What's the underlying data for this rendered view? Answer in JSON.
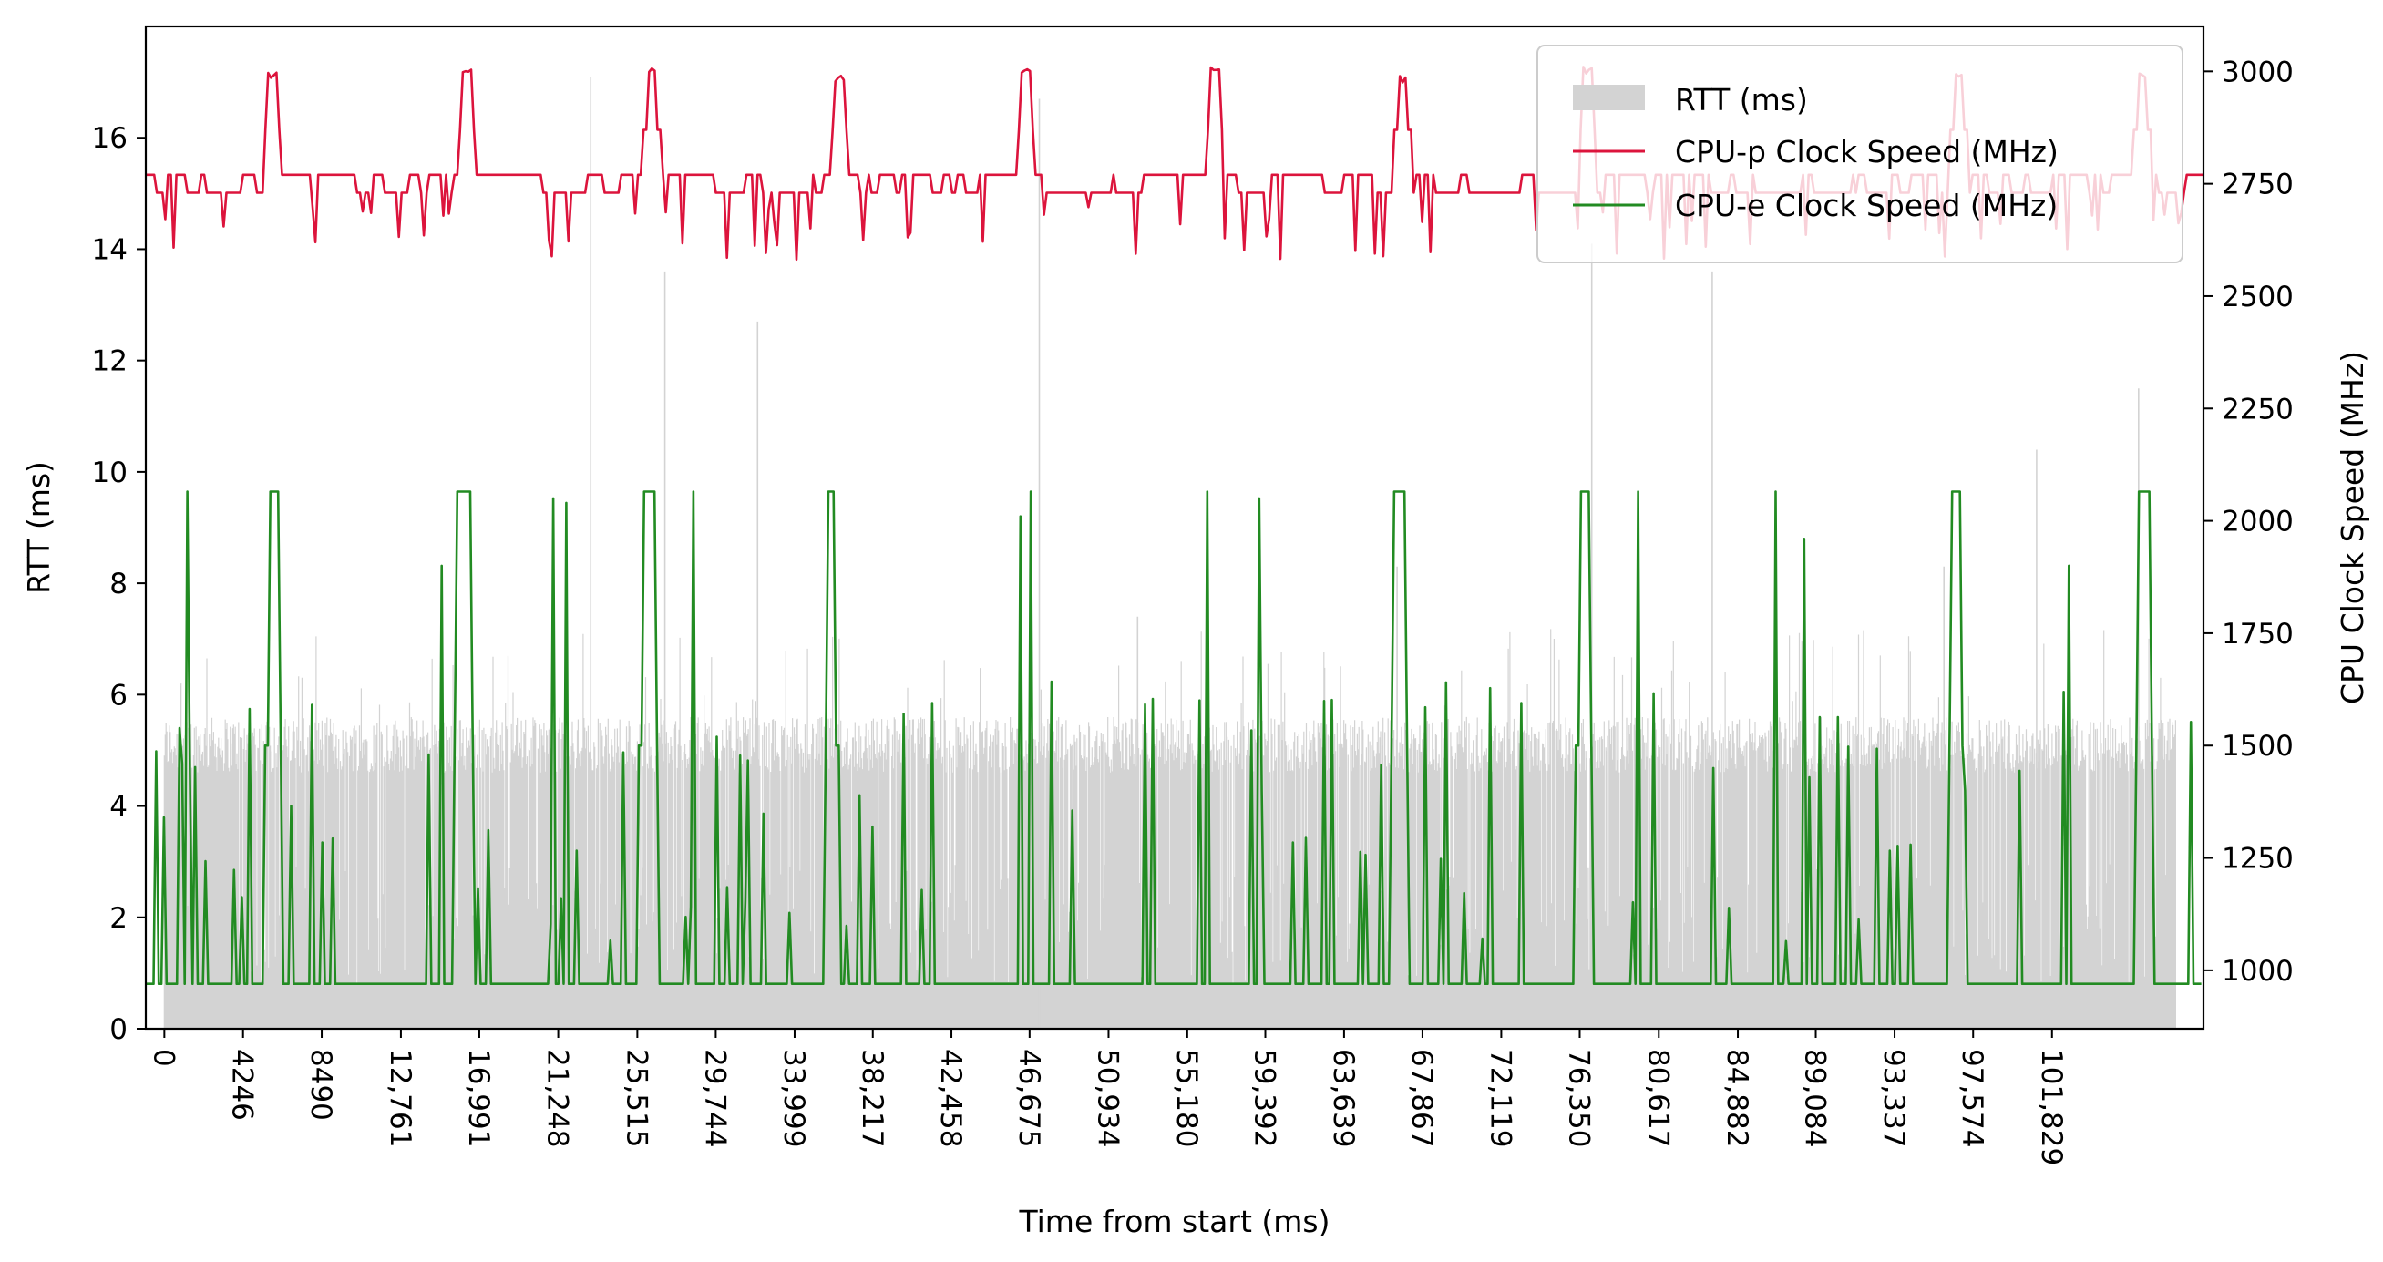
{
  "chart_data": {
    "type": "bar+line",
    "title": "",
    "xlabel": "Time from start (ms)",
    "ylabel_left": "RTT (ms)",
    "ylabel_right": "CPU Clock Speed (MHz)",
    "ylim_left": [
      0,
      18
    ],
    "ylim_right": [
      870,
      3100
    ],
    "xlim": [
      -1000,
      110000
    ],
    "x_ticks": [
      {
        "value": 0,
        "label": "0"
      },
      {
        "value": 4246,
        "label": "4246"
      },
      {
        "value": 8490,
        "label": "8490"
      },
      {
        "value": 12761,
        "label": "12,761"
      },
      {
        "value": 16991,
        "label": "16,991"
      },
      {
        "value": 21248,
        "label": "21,248"
      },
      {
        "value": 25515,
        "label": "25,515"
      },
      {
        "value": 29744,
        "label": "29,744"
      },
      {
        "value": 33999,
        "label": "33,999"
      },
      {
        "value": 38217,
        "label": "38,217"
      },
      {
        "value": 42458,
        "label": "42,458"
      },
      {
        "value": 46675,
        "label": "46,675"
      },
      {
        "value": 50934,
        "label": "50,934"
      },
      {
        "value": 55180,
        "label": "55,180"
      },
      {
        "value": 59392,
        "label": "59,392"
      },
      {
        "value": 63639,
        "label": "63,639"
      },
      {
        "value": 67867,
        "label": "67,867"
      },
      {
        "value": 72119,
        "label": "72,119"
      },
      {
        "value": 76350,
        "label": "76,350"
      },
      {
        "value": 80617,
        "label": "80,617"
      },
      {
        "value": 84882,
        "label": "84,882"
      },
      {
        "value": 89084,
        "label": "89,084"
      },
      {
        "value": 93337,
        "label": "93,337"
      },
      {
        "value": 97574,
        "label": "97,574"
      },
      {
        "value": 101829,
        "label": "101,829"
      }
    ],
    "y_ticks_left": [
      0,
      2,
      4,
      6,
      8,
      10,
      12,
      14,
      16
    ],
    "y_ticks_right": [
      1000,
      1250,
      1500,
      1750,
      2000,
      2250,
      2500,
      2750,
      3000
    ],
    "legend": {
      "position": "top-right",
      "entries": [
        {
          "label": "RTT (ms)",
          "kind": "bar",
          "color": "#d3d3d3"
        },
        {
          "label": "CPU-p Clock Speed (MHz)",
          "kind": "line",
          "color": "#dc143c"
        },
        {
          "label": "CPU-e Clock Speed (MHz)",
          "kind": "line",
          "color": "#228b22"
        }
      ]
    },
    "series": [
      {
        "name": "RTT (ms)",
        "type": "bar",
        "axis": "left",
        "color": "#d3d3d3",
        "typical_range": [
          4.6,
          5.6
        ],
        "low_bar_range": [
          0.8,
          3.0
        ],
        "spikes": [
          {
            "x": 23000,
            "value": 17.1
          },
          {
            "x": 27000,
            "value": 13.6
          },
          {
            "x": 32000,
            "value": 12.7
          },
          {
            "x": 47200,
            "value": 16.7
          },
          {
            "x": 52500,
            "value": 7.4
          },
          {
            "x": 66500,
            "value": 8.3
          },
          {
            "x": 77000,
            "value": 14.1
          },
          {
            "x": 83500,
            "value": 13.6
          },
          {
            "x": 96000,
            "value": 8.3
          },
          {
            "x": 101000,
            "value": 10.4
          },
          {
            "x": 106500,
            "value": 11.5
          }
        ]
      },
      {
        "name": "CPU-p Clock Speed (MHz)",
        "type": "line",
        "axis": "right",
        "color": "#dc143c",
        "baseline_levels": [
          2730,
          2770
        ],
        "dip_range": [
          2580,
          2700
        ],
        "peaks": [
          {
            "x": 5800,
            "value": 3000
          },
          {
            "x": 16300,
            "value": 3010
          },
          {
            "x": 26300,
            "value": 3010
          },
          {
            "x": 36400,
            "value": 2990
          },
          {
            "x": 46500,
            "value": 3010
          },
          {
            "x": 56700,
            "value": 3010
          },
          {
            "x": 66800,
            "value": 2990
          },
          {
            "x": 76800,
            "value": 3010
          },
          {
            "x": 96800,
            "value": 3000
          },
          {
            "x": 106700,
            "value": 3000
          }
        ]
      },
      {
        "name": "CPU-e Clock Speed (MHz)",
        "type": "line",
        "axis": "right",
        "color": "#228b22",
        "baseline": 970,
        "plateau_value": 2065,
        "plateaus": [
          {
            "start": 5600,
            "end": 6200
          },
          {
            "start": 15800,
            "end": 16500
          },
          {
            "start": 25800,
            "end": 26500
          },
          {
            "start": 35800,
            "end": 36200
          },
          {
            "start": 66300,
            "end": 66900
          },
          {
            "start": 76300,
            "end": 76900
          },
          {
            "start": 96400,
            "end": 96900
          },
          {
            "start": 106500,
            "end": 107100
          }
        ],
        "spikes": [
          {
            "x": 1200,
            "value": 2065
          },
          {
            "x": 15000,
            "value": 1900
          },
          {
            "x": 21000,
            "value": 2050
          },
          {
            "x": 21700,
            "value": 2040
          },
          {
            "x": 28600,
            "value": 2065
          },
          {
            "x": 46200,
            "value": 2010
          },
          {
            "x": 46700,
            "value": 2065
          },
          {
            "x": 56200,
            "value": 2065
          },
          {
            "x": 59000,
            "value": 2050
          },
          {
            "x": 79500,
            "value": 2065
          },
          {
            "x": 86900,
            "value": 2065
          },
          {
            "x": 88500,
            "value": 1960
          },
          {
            "x": 102800,
            "value": 1900
          }
        ],
        "small_spike_range": [
          1050,
          1650
        ]
      }
    ]
  }
}
